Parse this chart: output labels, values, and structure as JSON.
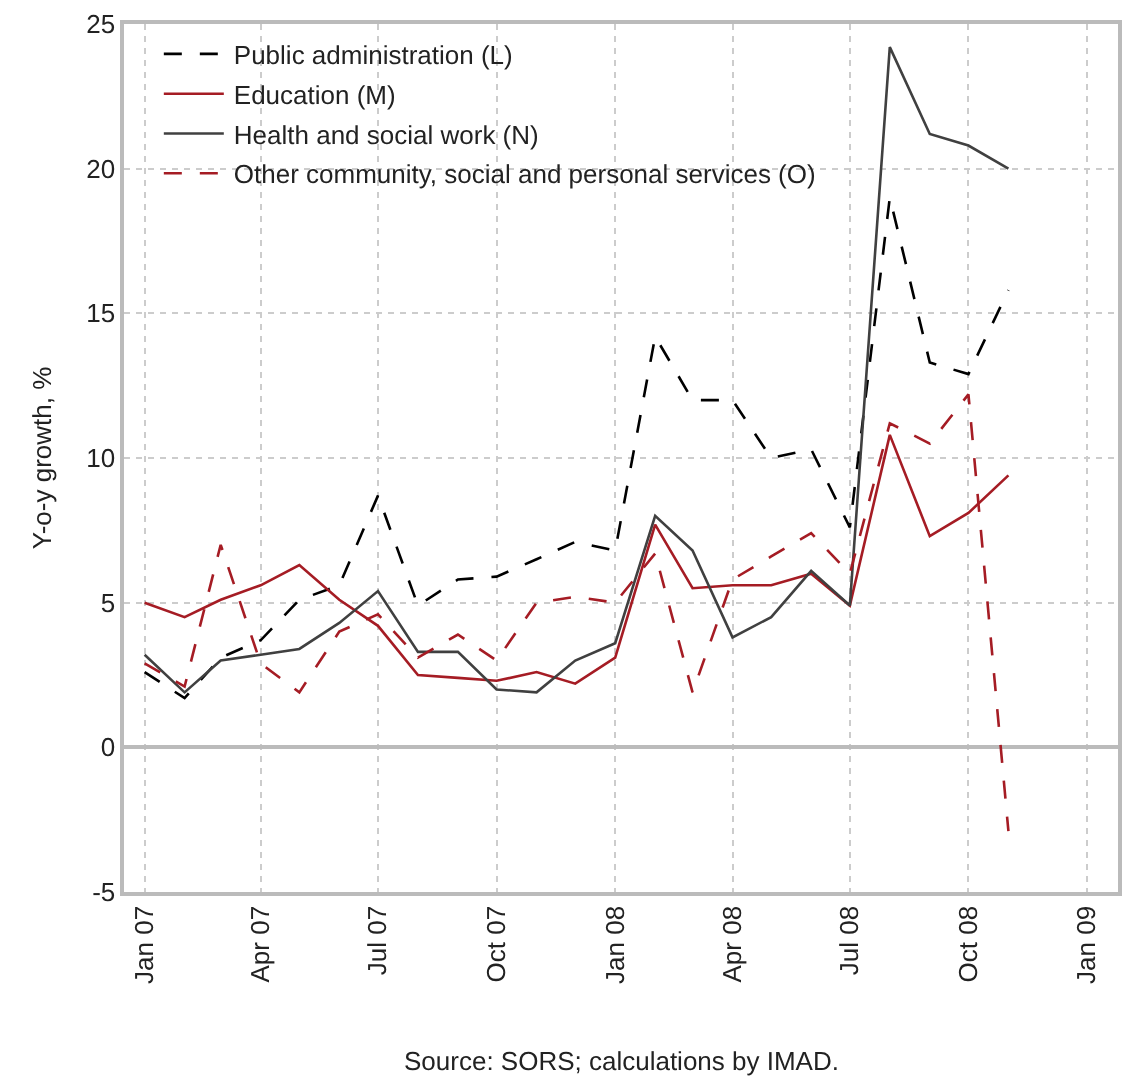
{
  "chart_data": {
    "type": "line",
    "ylabel": "Y-o-y growth, %",
    "annotations": [
      "Source: SORS; calculations by IMAD."
    ],
    "x": [
      "2007-01",
      "2007-02",
      "2007-03",
      "2007-04",
      "2007-05",
      "2007-06",
      "2007-07",
      "2007-08",
      "2007-09",
      "2007-10",
      "2007-11",
      "2007-12",
      "2008-01",
      "2008-02",
      "2008-03",
      "2008-04",
      "2008-05",
      "2008-06",
      "2008-07",
      "2008-08",
      "2008-09",
      "2008-10",
      "2008-11"
    ],
    "series": [
      {
        "name": "Public administration (L)",
        "color": "#000000",
        "line_style": "dashed",
        "values": [
          2.6,
          1.7,
          3.1,
          3.7,
          5.1,
          5.6,
          8.7,
          4.9,
          5.8,
          5.9,
          6.5,
          7.1,
          6.8,
          14.2,
          12.0,
          12.0,
          10.0,
          10.3,
          7.6,
          19.0,
          13.3,
          12.9,
          15.8
        ]
      },
      {
        "name": "Education (M)",
        "color": "#a51c24",
        "line_style": "solid",
        "values": [
          5.0,
          4.5,
          5.1,
          5.6,
          6.3,
          5.1,
          4.2,
          2.5,
          2.4,
          2.3,
          2.6,
          2.2,
          3.1,
          7.7,
          5.5,
          5.6,
          5.6,
          6.0,
          4.9,
          10.8,
          7.3,
          8.1,
          9.4
        ]
      },
      {
        "name": "Health and social work (N)",
        "color": "#404040",
        "line_style": "solid",
        "values": [
          3.2,
          1.9,
          3.0,
          3.2,
          3.4,
          4.3,
          5.4,
          3.3,
          3.3,
          2.0,
          1.9,
          3.0,
          3.6,
          8.0,
          6.8,
          3.8,
          4.5,
          6.1,
          4.9,
          24.2,
          21.2,
          20.8,
          20.0
        ]
      },
      {
        "name": "Other community, social and personal services (O)",
        "color": "#a51c24",
        "line_style": "dashed",
        "values": [
          2.9,
          2.1,
          7.0,
          2.9,
          1.9,
          4.0,
          4.6,
          3.1,
          3.9,
          3.0,
          5.0,
          5.2,
          5.0,
          6.7,
          1.9,
          5.8,
          6.6,
          7.4,
          6.0,
          11.2,
          10.5,
          12.2,
          -2.9
        ]
      }
    ],
    "xlim": [
      "2006-12-16",
      "2009-01-25"
    ],
    "xticks": [
      {
        "value": "2007-01",
        "label": "Jan 07"
      },
      {
        "value": "2007-04",
        "label": "Apr 07"
      },
      {
        "value": "2007-07",
        "label": "Jul 07"
      },
      {
        "value": "2007-10",
        "label": "Oct 07"
      },
      {
        "value": "2008-01",
        "label": "Jan 08"
      },
      {
        "value": "2008-04",
        "label": "Apr 08"
      },
      {
        "value": "2008-07",
        "label": "Jul 08"
      },
      {
        "value": "2008-10",
        "label": "Oct 08"
      },
      {
        "value": "2009-01",
        "label": "Jan 09"
      }
    ],
    "ylim": [
      -5,
      25
    ],
    "yticks": [
      -5,
      0,
      5,
      10,
      15,
      20,
      25
    ],
    "grid": true,
    "legend": "top left",
    "marker": "none"
  }
}
